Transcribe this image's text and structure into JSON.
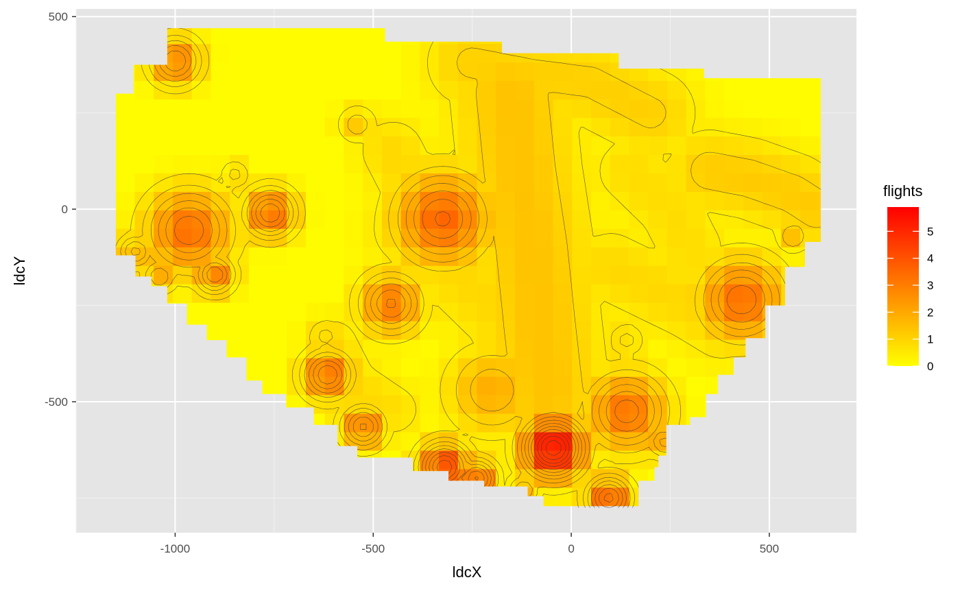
{
  "chart_data": {
    "type": "heatmap",
    "title": "",
    "xlabel": "ldcX",
    "ylabel": "ldcY",
    "xlim": [
      -1250,
      720
    ],
    "ylim": [
      -840,
      520
    ],
    "x_ticks": [
      -1000,
      -500,
      0,
      500
    ],
    "x_tick_labels": [
      "-1000",
      "-500",
      "0",
      "500"
    ],
    "y_ticks": [
      -500,
      0,
      500
    ],
    "y_tick_labels": [
      "-500",
      "0",
      "500"
    ],
    "grid": true,
    "background": "#e5e5e5",
    "legend": {
      "title": "flights",
      "placement": "right",
      "min": 0,
      "max": 5.9,
      "breaks": [
        0,
        1,
        2,
        3,
        4,
        5
      ],
      "break_labels": [
        "0",
        "1",
        "2",
        "3",
        "4",
        "5"
      ],
      "low_color": "#ffff00",
      "high_color": "#ff0000"
    },
    "grid_cell_size": 48,
    "grid_x_range": [
      -1150,
      630
    ],
    "grid_y_range": [
      -770,
      470
    ],
    "region_outline": [
      [
        -1150,
        -85
      ],
      [
        -1150,
        300
      ],
      [
        -1105,
        300
      ],
      [
        -1105,
        375
      ],
      [
        -1020,
        375
      ],
      [
        -1020,
        470
      ],
      [
        -470,
        470
      ],
      [
        -470,
        435
      ],
      [
        -175,
        435
      ],
      [
        -175,
        405
      ],
      [
        120,
        405
      ],
      [
        120,
        365
      ],
      [
        335,
        365
      ],
      [
        335,
        340
      ],
      [
        630,
        340
      ],
      [
        630,
        -85
      ],
      [
        590,
        -85
      ],
      [
        590,
        -150
      ],
      [
        540,
        -150
      ],
      [
        540,
        -250
      ],
      [
        490,
        -250
      ],
      [
        490,
        -335
      ],
      [
        440,
        -335
      ],
      [
        440,
        -385
      ],
      [
        410,
        -385
      ],
      [
        410,
        -430
      ],
      [
        370,
        -430
      ],
      [
        370,
        -480
      ],
      [
        340,
        -480
      ],
      [
        340,
        -540
      ],
      [
        300,
        -540
      ],
      [
        300,
        -560
      ],
      [
        240,
        -560
      ],
      [
        240,
        -640
      ],
      [
        220,
        -640
      ],
      [
        220,
        -670
      ],
      [
        210,
        -670
      ],
      [
        210,
        -705
      ],
      [
        170,
        -705
      ],
      [
        170,
        -775
      ],
      [
        -70,
        -775
      ],
      [
        -70,
        -745
      ],
      [
        -110,
        -745
      ],
      [
        -110,
        -720
      ],
      [
        -220,
        -720
      ],
      [
        -220,
        -705
      ],
      [
        -310,
        -705
      ],
      [
        -310,
        -680
      ],
      [
        -400,
        -680
      ],
      [
        -400,
        -645
      ],
      [
        -540,
        -645
      ],
      [
        -540,
        -615
      ],
      [
        -590,
        -615
      ],
      [
        -590,
        -560
      ],
      [
        -650,
        -560
      ],
      [
        -650,
        -515
      ],
      [
        -720,
        -515
      ],
      [
        -720,
        -480
      ],
      [
        -780,
        -480
      ],
      [
        -780,
        -445
      ],
      [
        -820,
        -445
      ],
      [
        -820,
        -385
      ],
      [
        -870,
        -385
      ],
      [
        -870,
        -340
      ],
      [
        -920,
        -340
      ],
      [
        -920,
        -300
      ],
      [
        -970,
        -300
      ],
      [
        -970,
        -245
      ],
      [
        -1020,
        -245
      ],
      [
        -1020,
        -200
      ],
      [
        -1060,
        -200
      ],
      [
        -1060,
        -175
      ],
      [
        -1100,
        -175
      ],
      [
        -1100,
        -120
      ],
      [
        -1150,
        -120
      ]
    ],
    "hotspots": [
      {
        "x": -1000,
        "y": 385,
        "value": 3.0,
        "radius": 45
      },
      {
        "x": -965,
        "y": -55,
        "value": 3.4,
        "radius": 75
      },
      {
        "x": -760,
        "y": -10,
        "value": 3.5,
        "radius": 45
      },
      {
        "x": -900,
        "y": -170,
        "value": 3.0,
        "radius": 35
      },
      {
        "x": -850,
        "y": 90,
        "value": 1.2,
        "radius": 25
      },
      {
        "x": -540,
        "y": 220,
        "value": 1.3,
        "radius": 35
      },
      {
        "x": -325,
        "y": -25,
        "value": 3.6,
        "radius": 85
      },
      {
        "x": -455,
        "y": -245,
        "value": 3.1,
        "radius": 55
      },
      {
        "x": -615,
        "y": -430,
        "value": 3.5,
        "radius": 45
      },
      {
        "x": -525,
        "y": -565,
        "value": 3.1,
        "radius": 40
      },
      {
        "x": -320,
        "y": -670,
        "value": 4.4,
        "radius": 45
      },
      {
        "x": -240,
        "y": -700,
        "value": 3.6,
        "radius": 35
      },
      {
        "x": -45,
        "y": -620,
        "value": 5.9,
        "radius": 55
      },
      {
        "x": 95,
        "y": -750,
        "value": 3.7,
        "radius": 40
      },
      {
        "x": 140,
        "y": -525,
        "value": 3.3,
        "radius": 70
      },
      {
        "x": 430,
        "y": -235,
        "value": 3.4,
        "radius": 75
      },
      {
        "x": -200,
        "y": -470,
        "value": 1.9,
        "radius": 80
      },
      {
        "x": 560,
        "y": -70,
        "value": 1.5,
        "radius": 30
      },
      {
        "x": 235,
        "y": -605,
        "value": 2.2,
        "radius": 30
      },
      {
        "x": -1100,
        "y": -110,
        "value": 2.2,
        "radius": 30
      },
      {
        "x": -1040,
        "y": -175,
        "value": 2.0,
        "radius": 30
      },
      {
        "x": -120,
        "y": -730,
        "value": 2.0,
        "radius": 30
      },
      {
        "x": 140,
        "y": -340,
        "value": 1.2,
        "radius": 30
      },
      {
        "x": -620,
        "y": -330,
        "value": 1.2,
        "radius": 30
      }
    ],
    "ridges": [
      {
        "points": [
          [
            -150,
            300
          ],
          [
            -130,
            100
          ],
          [
            -100,
            -100
          ],
          [
            -80,
            -300
          ],
          [
            -60,
            -480
          ]
        ],
        "value": 1.4,
        "width": 110
      },
      {
        "points": [
          [
            -250,
            380
          ],
          [
            -100,
            350
          ],
          [
            50,
            330
          ],
          [
            200,
            250
          ]
        ],
        "value": 1.1,
        "width": 90
      },
      {
        "points": [
          [
            350,
            100
          ],
          [
            450,
            80
          ],
          [
            560,
            40
          ],
          [
            620,
            0
          ]
        ],
        "value": 1.2,
        "width": 80
      },
      {
        "points": [
          [
            -400,
            -50
          ],
          [
            -300,
            -150
          ],
          [
            -200,
            -250
          ],
          [
            -100,
            -350
          ]
        ],
        "value": 0.9,
        "width": 90
      },
      {
        "points": [
          [
            100,
            -150
          ],
          [
            200,
            -200
          ],
          [
            300,
            -250
          ],
          [
            380,
            -300
          ]
        ],
        "value": 0.9,
        "width": 80
      },
      {
        "points": [
          [
            -450,
            150
          ],
          [
            -400,
            50
          ],
          [
            -350,
            -50
          ]
        ],
        "value": 0.9,
        "width": 70
      },
      {
        "points": [
          [
            150,
            100
          ],
          [
            250,
            0
          ],
          [
            300,
            -100
          ]
        ],
        "value": 0.8,
        "width": 80
      },
      {
        "points": [
          [
            -600,
            -350
          ],
          [
            -550,
            -450
          ],
          [
            -450,
            -520
          ]
        ],
        "value": 0.8,
        "width": 60
      }
    ],
    "contour_levels": [
      0.5,
      1.0,
      1.5,
      2.0,
      2.5,
      3.0,
      3.5,
      4.0,
      4.5,
      5.0,
      5.5
    ]
  }
}
